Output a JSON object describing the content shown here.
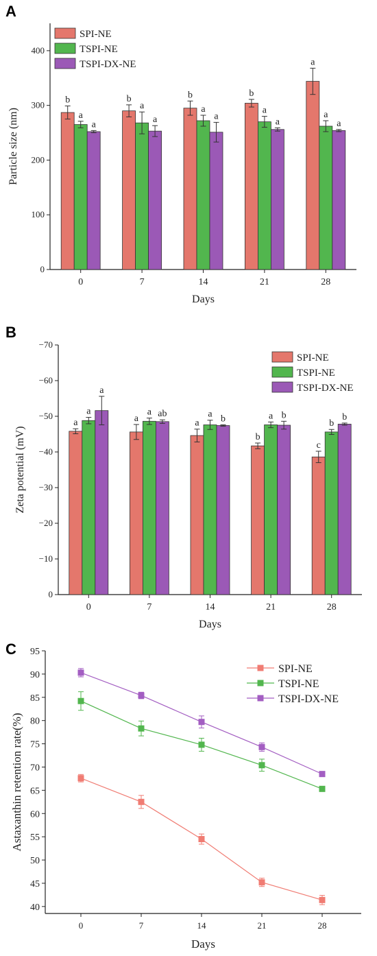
{
  "chart_data": [
    {
      "panel": "A",
      "type": "bar",
      "categories": [
        "0",
        "7",
        "14",
        "21",
        "28"
      ],
      "xlabel": "Days",
      "ylabel": "Particle size (nm)",
      "ylim": [
        0,
        450
      ],
      "yticks": [
        0,
        100,
        200,
        300,
        400
      ],
      "legend_position": "top-left",
      "series": [
        {
          "name": "SPI-NE",
          "color": "#e4776c",
          "values": [
            287,
            290,
            295,
            304,
            344
          ],
          "errors": [
            12,
            11,
            13,
            7,
            24
          ],
          "letters": [
            "b",
            "b",
            "b",
            "b",
            "a"
          ]
        },
        {
          "name": "TSPI-NE",
          "color": "#52b64e",
          "values": [
            265,
            268,
            272,
            270,
            262
          ],
          "errors": [
            6,
            20,
            10,
            10,
            10
          ],
          "letters": [
            "a",
            "a",
            "a",
            "a",
            "a"
          ]
        },
        {
          "name": "TSPI-DX-NE",
          "color": "#9b59b6",
          "values": [
            252,
            253,
            251,
            256,
            254
          ],
          "errors": [
            2,
            10,
            18,
            3,
            2
          ],
          "letters": [
            "a",
            "a",
            "a",
            "a",
            "a"
          ]
        }
      ]
    },
    {
      "panel": "B",
      "type": "bar",
      "categories": [
        "0",
        "7",
        "14",
        "21",
        "28"
      ],
      "xlabel": "Days",
      "ylabel": "Zeta potential (mV)",
      "ylim": [
        0,
        -70
      ],
      "yticks": [
        0,
        -10,
        -20,
        -30,
        -40,
        -50,
        -60,
        -70
      ],
      "yticklabels": [
        "0",
        "−10",
        "−20",
        "−30",
        "−40",
        "−50",
        "−60",
        "−70"
      ],
      "legend_position": "top-right",
      "series": [
        {
          "name": "SPI-NE",
          "color": "#e4776c",
          "values": [
            -45.8,
            -45.6,
            -44.6,
            -41.7,
            -38.6
          ],
          "errors": [
            0.7,
            2.1,
            1.8,
            0.8,
            1.6
          ],
          "letters": [
            "a",
            "a",
            "a",
            "b",
            "c"
          ]
        },
        {
          "name": "TSPI-NE",
          "color": "#52b64e",
          "values": [
            -48.8,
            -48.6,
            -47.6,
            -47.6,
            -45.6
          ],
          "errors": [
            0.9,
            0.9,
            1.3,
            0.8,
            0.7
          ],
          "letters": [
            "a",
            "a",
            "a",
            "a",
            "b"
          ]
        },
        {
          "name": "TSPI-DX-NE",
          "color": "#9b59b6",
          "values": [
            -51.6,
            -48.5,
            -47.4,
            -47.5,
            -47.8
          ],
          "errors": [
            4.0,
            0.5,
            0.2,
            1.1,
            0.3
          ],
          "letters": [
            "a",
            "ab",
            "b",
            "b",
            "b"
          ]
        }
      ]
    },
    {
      "panel": "C",
      "type": "line",
      "x": [
        0,
        7,
        14,
        21,
        28
      ],
      "xticks": [
        "0",
        "7",
        "14",
        "21",
        "28"
      ],
      "xlabel": "Days",
      "ylabel": "Astaxanthin retention rate(%)",
      "ylim": [
        38.5,
        95
      ],
      "yticks": [
        40,
        45,
        50,
        55,
        60,
        65,
        70,
        75,
        80,
        85,
        90,
        95
      ],
      "legend_position": "top-right",
      "series": [
        {
          "name": "SPI-NE",
          "color": "#f07c73",
          "values": [
            67.6,
            62.5,
            54.5,
            45.2,
            41.4
          ],
          "errors": [
            0.8,
            1.4,
            1.1,
            0.9,
            1.0
          ]
        },
        {
          "name": "TSPI-NE",
          "color": "#52b64e",
          "values": [
            84.2,
            78.3,
            74.8,
            70.4,
            65.3
          ],
          "errors": [
            2.0,
            1.6,
            1.4,
            1.3,
            0.5
          ]
        },
        {
          "name": "TSPI-DX-NE",
          "color": "#a35ec2",
          "values": [
            90.3,
            85.4,
            79.7,
            74.3,
            68.5
          ],
          "errors": [
            0.9,
            0.7,
            1.3,
            0.9,
            0.4
          ]
        }
      ]
    }
  ]
}
